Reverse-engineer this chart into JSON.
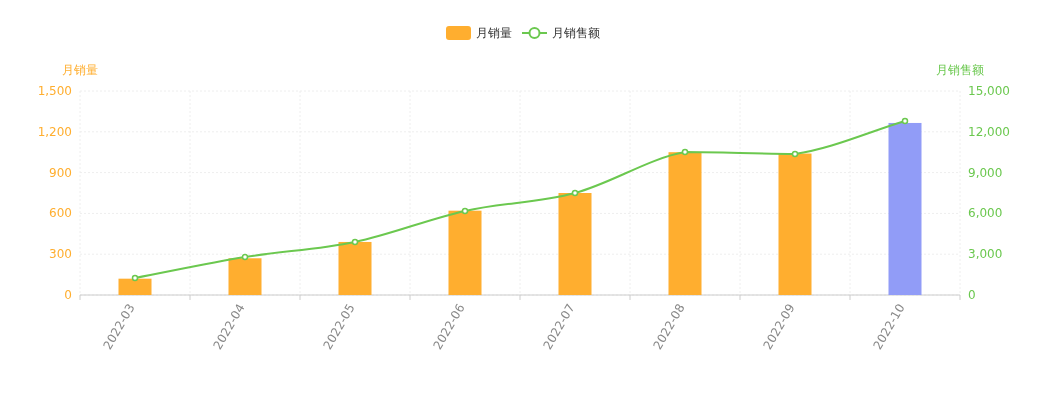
{
  "chart_data": {
    "type": "bar",
    "categories": [
      "2022-03",
      "2022-04",
      "2022-05",
      "2022-06",
      "2022-07",
      "2022-08",
      "2022-09",
      "2022-10"
    ],
    "ylabel": "月销量",
    "y2label": "月销售额",
    "series": [
      {
        "name": "月销量",
        "color": "#ffae2f",
        "colors": [
          "#ffae2f",
          "#ffae2f",
          "#ffae2f",
          "#ffae2f",
          "#ffae2f",
          "#ffae2f",
          "#ffae2f",
          "#919cf7"
        ],
        "values": [
          120,
          270,
          390,
          620,
          750,
          1050,
          1040,
          1265
        ]
      },
      {
        "name": "月销售额",
        "type": "line",
        "axis": "y2",
        "color": "#6bc84f",
        "marker": "circle",
        "values": [
          1250,
          2790,
          3900,
          6180,
          7500,
          10510,
          10370,
          12790
        ]
      }
    ],
    "ylim": [
      0,
      1500
    ],
    "yticks": [
      0,
      {
        "value": 300,
        "label": "300"
      },
      {
        "value": 600,
        "label": "600"
      },
      {
        "value": 900,
        "label": "900"
      },
      {
        "value": 1200,
        "label": "1,200"
      },
      {
        "value": 1500,
        "label": "1,500"
      }
    ],
    "y2lim": [
      0,
      15000
    ],
    "y2ticks": [
      0,
      {
        "value": 3000,
        "label": "3,000"
      },
      {
        "value": 6000,
        "label": "6,000"
      },
      {
        "value": 9000,
        "label": "9,000"
      },
      {
        "value": 12000,
        "label": "12,000"
      },
      {
        "value": 15000,
        "label": "15,000"
      }
    ],
    "grid": true,
    "legend": "top"
  }
}
